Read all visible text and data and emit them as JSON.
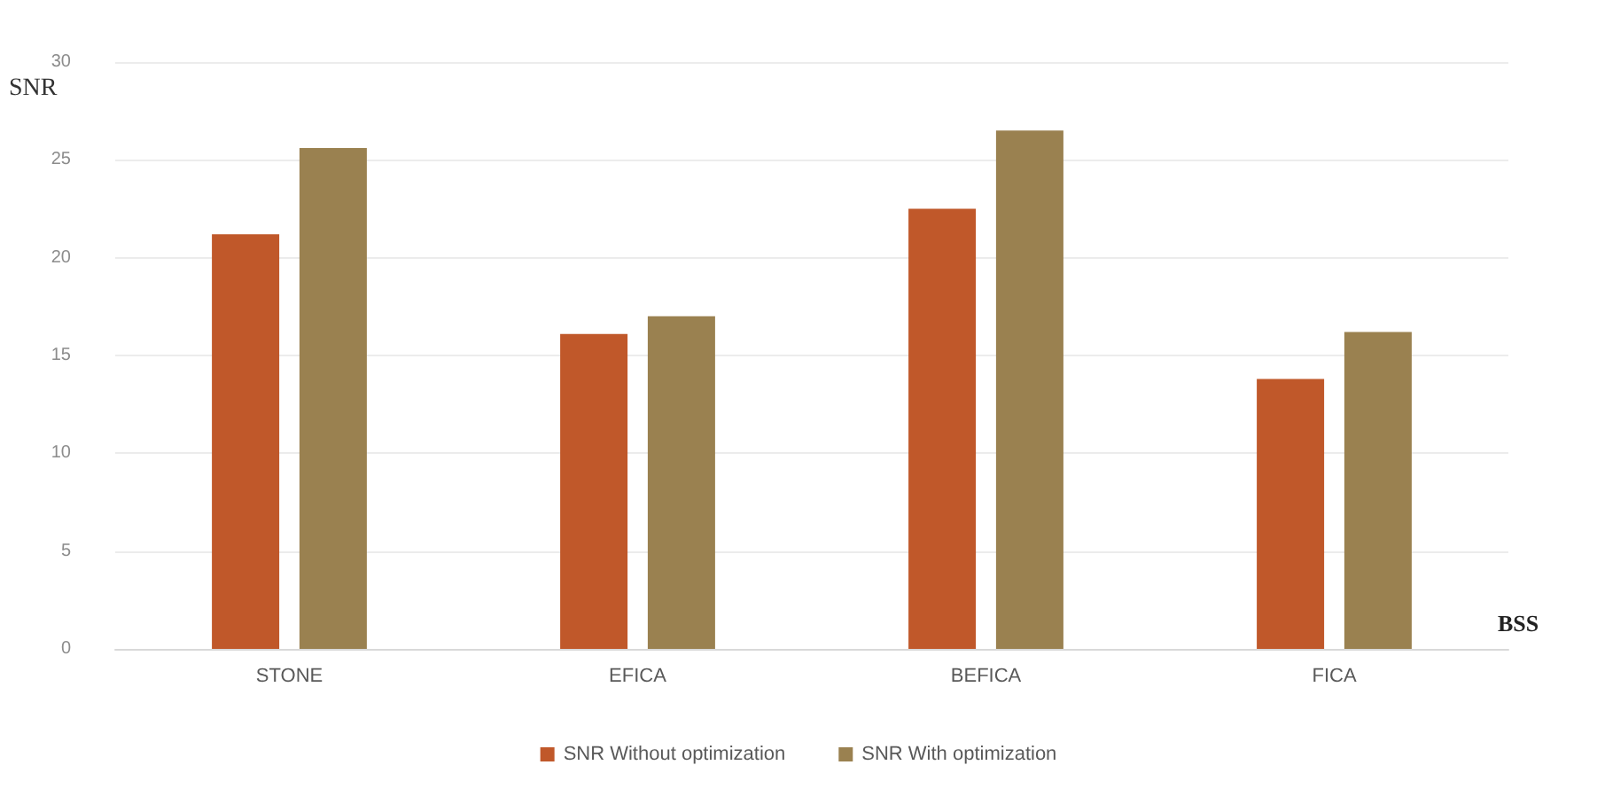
{
  "chart_data": {
    "type": "bar",
    "xlabel": "BSS",
    "ylabel": "SNR",
    "categories": [
      "STONE",
      "EFICA",
      "BEFICA",
      "FICA"
    ],
    "series": [
      {
        "name": "SNR Without optimization",
        "color": "#c0582a",
        "values": [
          21.2,
          16.1,
          22.5,
          13.8
        ]
      },
      {
        "name": "SNR With optimization",
        "color": "#9a8150",
        "values": [
          25.6,
          17.0,
          26.5,
          16.2
        ]
      }
    ],
    "ylim": [
      0,
      30
    ],
    "yticks": [
      0,
      5,
      10,
      15,
      20,
      25,
      30
    ],
    "grid": "y",
    "legend": "bottom"
  }
}
